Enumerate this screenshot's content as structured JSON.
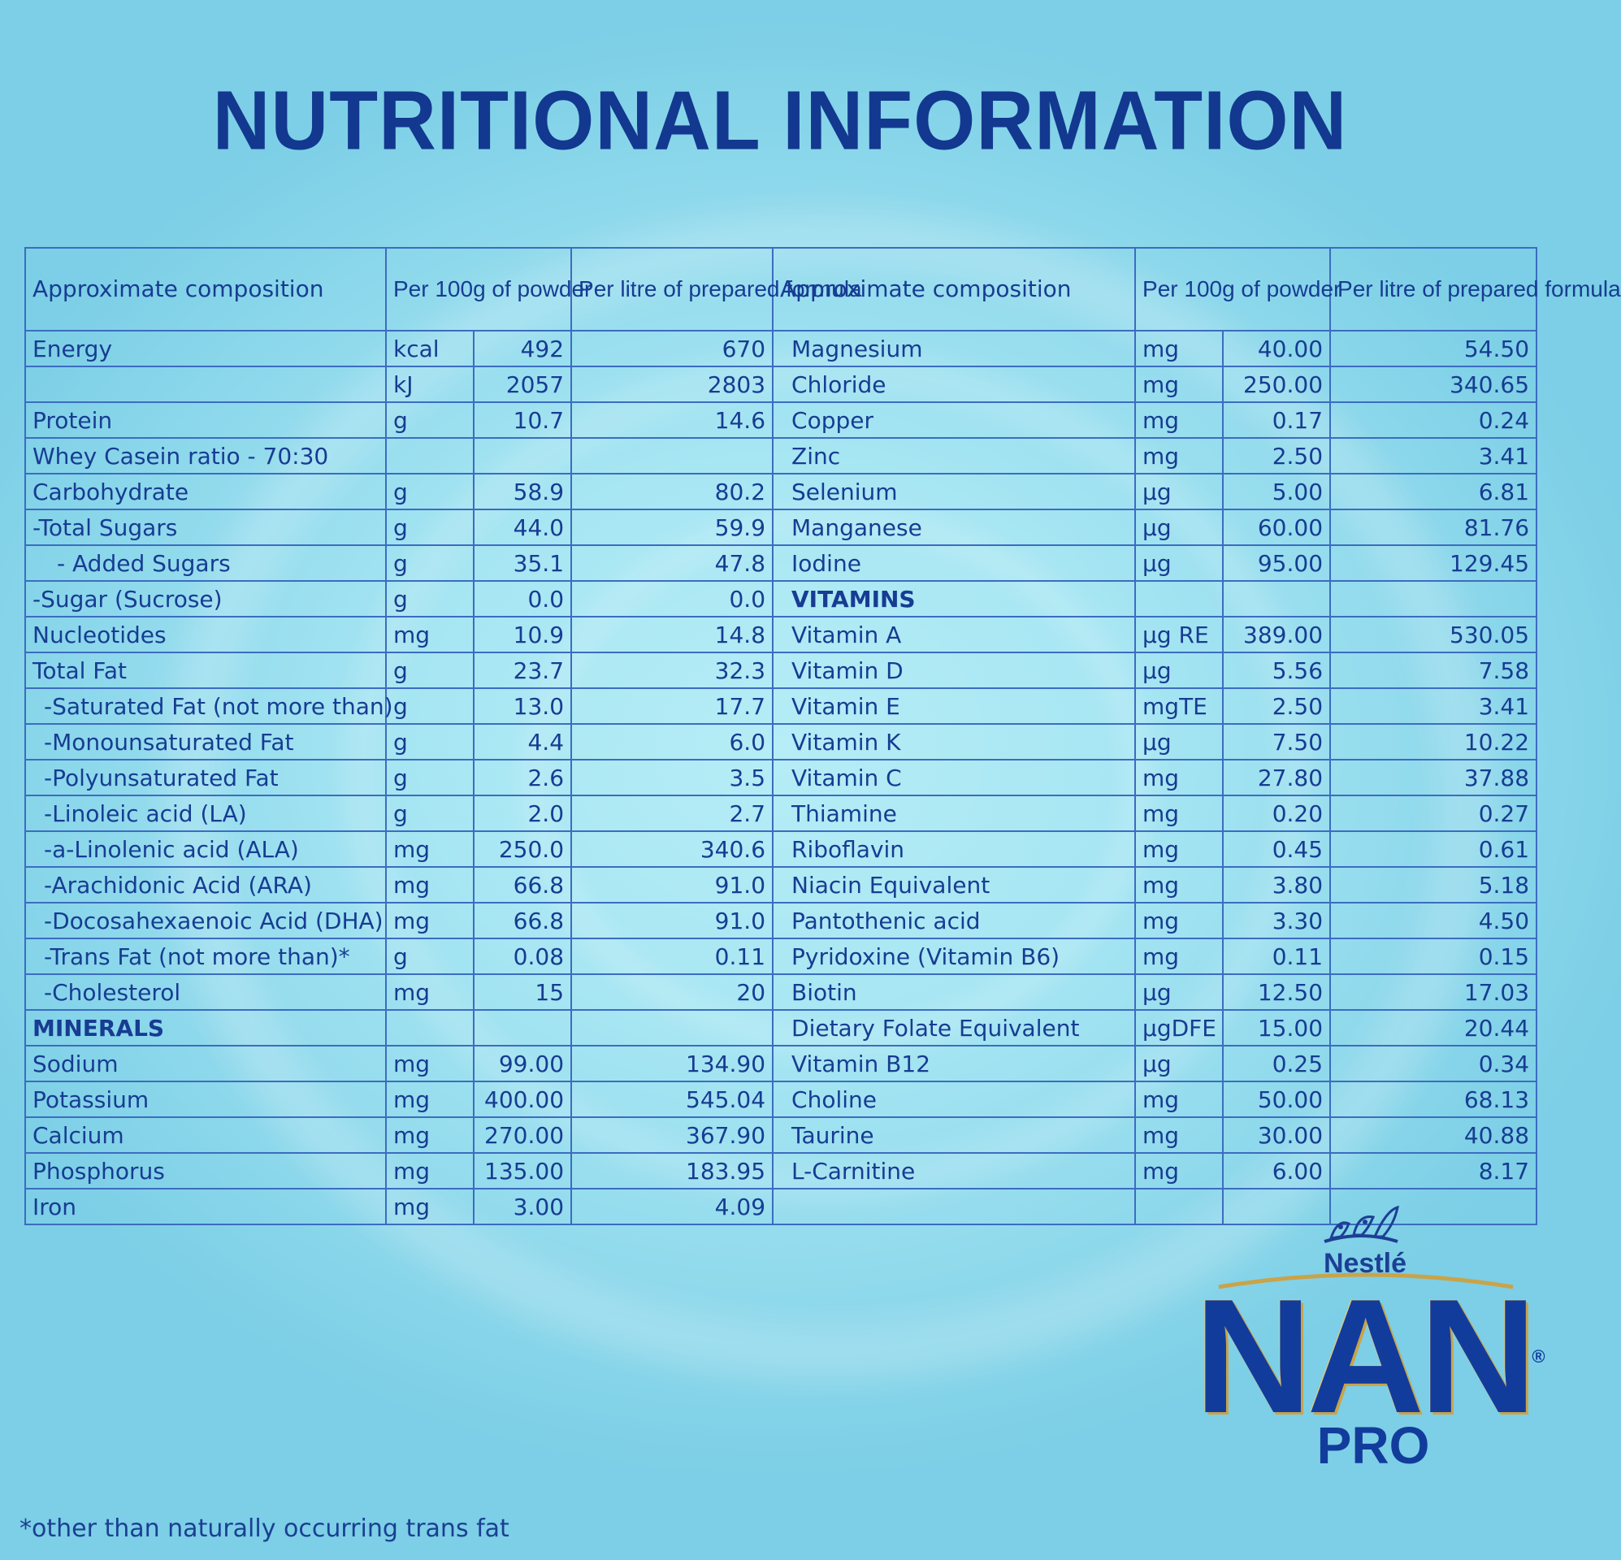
{
  "title": "NUTRITIONAL INFORMATION",
  "headers": {
    "composition": "Approximate composition",
    "per100g": "Per 100g of powder",
    "perLitre": "Per litre of prepared formula"
  },
  "left_rows": [
    {
      "name": "Energy",
      "unit": "kcal",
      "per100": "492",
      "perLitre": "670",
      "indent": 0
    },
    {
      "name": "",
      "unit": "kJ",
      "per100": "2057",
      "perLitre": "2803",
      "indent": 0
    },
    {
      "name": "Protein",
      "unit": "g",
      "per100": "10.7",
      "perLitre": "14.6",
      "indent": 0
    },
    {
      "name": "Whey Casein ratio - 70:30",
      "unit": "",
      "per100": "",
      "perLitre": "",
      "indent": 0
    },
    {
      "name": "Carbohydrate",
      "unit": "g",
      "per100": "58.9",
      "perLitre": "80.2",
      "indent": 0
    },
    {
      "name": "-Total Sugars",
      "unit": "g",
      "per100": "44.0",
      "perLitre": "59.9",
      "indent": 0
    },
    {
      "name": "- Added Sugars",
      "unit": "g",
      "per100": "35.1",
      "perLitre": "47.8",
      "indent": 2
    },
    {
      "name": "-Sugar (Sucrose)",
      "unit": "g",
      "per100": "0.0",
      "perLitre": "0.0",
      "indent": 0
    },
    {
      "name": "Nucleotides",
      "unit": "mg",
      "per100": "10.9",
      "perLitre": "14.8",
      "indent": 0
    },
    {
      "name": "Total Fat",
      "unit": "g",
      "per100": "23.7",
      "perLitre": "32.3",
      "indent": 0
    },
    {
      "name": "-Saturated Fat (not more than)",
      "unit": "g",
      "per100": "13.0",
      "perLitre": "17.7",
      "indent": 1
    },
    {
      "name": "-Monounsaturated Fat",
      "unit": "g",
      "per100": "4.4",
      "perLitre": "6.0",
      "indent": 1
    },
    {
      "name": "-Polyunsaturated Fat",
      "unit": "g",
      "per100": "2.6",
      "perLitre": "3.5",
      "indent": 1
    },
    {
      "name": "-Linoleic acid (LA)",
      "unit": "g",
      "per100": "2.0",
      "perLitre": "2.7",
      "indent": 1
    },
    {
      "name": "-a-Linolenic acid (ALA)",
      "unit": "mg",
      "per100": "250.0",
      "perLitre": "340.6",
      "indent": 1
    },
    {
      "name": "-Arachidonic Acid (ARA)",
      "unit": "mg",
      "per100": "66.8",
      "perLitre": "91.0",
      "indent": 1
    },
    {
      "name": "-Docosahexaenoic Acid (DHA)",
      "unit": "mg",
      "per100": "66.8",
      "perLitre": "91.0",
      "indent": 1
    },
    {
      "name": "-Trans Fat (not more than)*",
      "unit": "g",
      "per100": "0.08",
      "perLitre": "0.11",
      "indent": 1
    },
    {
      "name": "-Cholesterol",
      "unit": "mg",
      "per100": "15",
      "perLitre": "20",
      "indent": 1
    },
    {
      "name": "MINERALS",
      "unit": "",
      "per100": "",
      "perLitre": "",
      "indent": 0,
      "section": true
    },
    {
      "name": "Sodium",
      "unit": "mg",
      "per100": "99.00",
      "perLitre": "134.90",
      "indent": 0
    },
    {
      "name": "Potassium",
      "unit": "mg",
      "per100": "400.00",
      "perLitre": "545.04",
      "indent": 0
    },
    {
      "name": "Calcium",
      "unit": "mg",
      "per100": "270.00",
      "perLitre": "367.90",
      "indent": 0
    },
    {
      "name": "Phosphorus",
      "unit": "mg",
      "per100": "135.00",
      "perLitre": "183.95",
      "indent": 0
    },
    {
      "name": "Iron",
      "unit": "mg",
      "per100": "3.00",
      "perLitre": "4.09",
      "indent": 0
    }
  ],
  "right_rows": [
    {
      "name": "Magnesium",
      "unit": "mg",
      "per100": "40.00",
      "perLitre": "54.50"
    },
    {
      "name": "Chloride",
      "unit": "mg",
      "per100": "250.00",
      "perLitre": "340.65"
    },
    {
      "name": "Copper",
      "unit": "mg",
      "per100": "0.17",
      "perLitre": "0.24"
    },
    {
      "name": "Zinc",
      "unit": "mg",
      "per100": "2.50",
      "perLitre": "3.41"
    },
    {
      "name": "Selenium",
      "unit": "µg",
      "per100": "5.00",
      "perLitre": "6.81"
    },
    {
      "name": "Manganese",
      "unit": "µg",
      "per100": "60.00",
      "perLitre": "81.76"
    },
    {
      "name": "Iodine",
      "unit": "µg",
      "per100": "95.00",
      "perLitre": "129.45"
    },
    {
      "name": "VITAMINS",
      "unit": "",
      "per100": "",
      "perLitre": "",
      "section": true
    },
    {
      "name": "Vitamin A",
      "unit": "µg RE",
      "per100": "389.00",
      "perLitre": "530.05"
    },
    {
      "name": "Vitamin D",
      "unit": "µg",
      "per100": "5.56",
      "perLitre": "7.58"
    },
    {
      "name": "Vitamin E",
      "unit": "mgTE",
      "per100": "2.50",
      "perLitre": "3.41"
    },
    {
      "name": "Vitamin K",
      "unit": "µg",
      "per100": "7.50",
      "perLitre": "10.22"
    },
    {
      "name": "Vitamin C",
      "unit": "mg",
      "per100": "27.80",
      "perLitre": "37.88"
    },
    {
      "name": "Thiamine",
      "unit": "mg",
      "per100": "0.20",
      "perLitre": "0.27"
    },
    {
      "name": "Riboflavin",
      "unit": "mg",
      "per100": "0.45",
      "perLitre": "0.61"
    },
    {
      "name": "Niacin Equivalent",
      "unit": "mg",
      "per100": "3.80",
      "perLitre": "5.18"
    },
    {
      "name": "Pantothenic acid",
      "unit": "mg",
      "per100": "3.30",
      "perLitre": "4.50"
    },
    {
      "name": "Pyridoxine (Vitamin B6)",
      "unit": "mg",
      "per100": "0.11",
      "perLitre": "0.15"
    },
    {
      "name": "Biotin",
      "unit": "µg",
      "per100": "12.50",
      "perLitre": "17.03"
    },
    {
      "name": "Dietary Folate Equivalent",
      "unit": "µgDFE",
      "per100": "15.00",
      "perLitre": "20.44"
    },
    {
      "name": "Vitamin B12",
      "unit": "µg",
      "per100": "0.25",
      "perLitre": "0.34"
    },
    {
      "name": "Choline",
      "unit": "mg",
      "per100": "50.00",
      "perLitre": "68.13"
    },
    {
      "name": "Taurine",
      "unit": "mg",
      "per100": "30.00",
      "perLitre": "40.88"
    },
    {
      "name": "L-Carnitine",
      "unit": "mg",
      "per100": "6.00",
      "perLitre": "8.17"
    },
    {
      "name": "",
      "unit": "",
      "per100": "",
      "perLitre": ""
    }
  ],
  "footnote": "*other than naturally occurring trans fat",
  "logo": {
    "brand": "Nestlé",
    "product": "NAN",
    "registered": "®",
    "line": "PRO"
  },
  "colors": {
    "primary_text": "#173c92",
    "border": "#3c6cc0",
    "background": "#a7e6f3",
    "logo_gold": "#c9a34a"
  }
}
